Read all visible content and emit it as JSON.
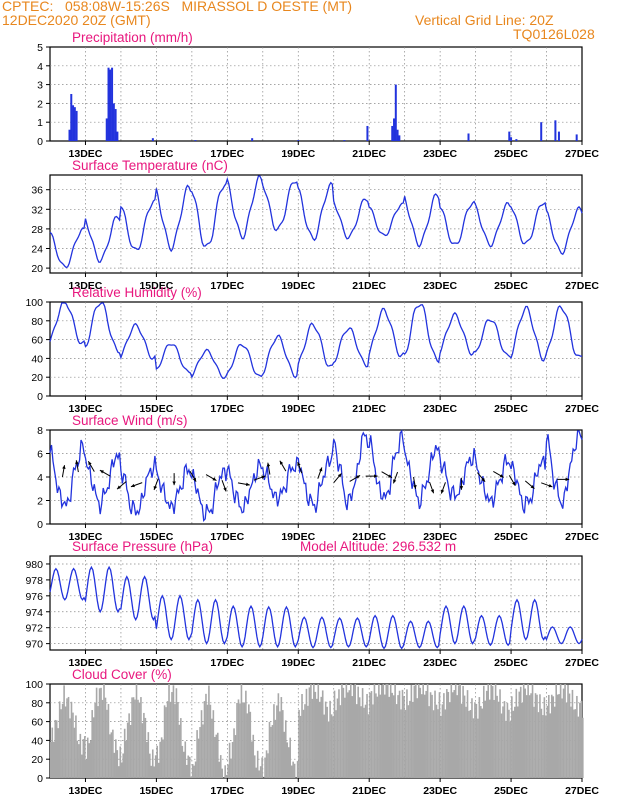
{
  "header": {
    "line1": "CPTEC:   058:08W-15:26S   MIRASSOL D OESTE (MT)",
    "line2": "12DEC2020 20Z (GMT)",
    "grid_note": "Vertical Grid Line: 20Z",
    "model_code": "TQ0126L028"
  },
  "colors": {
    "header": "#e8871e",
    "title": "#e8177e",
    "series": "#2233dd",
    "cloud": "#a8a8a8",
    "grid": "#888888"
  },
  "x_ticks": [
    "13DEC",
    "15DEC",
    "17DEC",
    "19DEC",
    "21DEC",
    "23DEC",
    "25DEC",
    "27DEC"
  ],
  "chart_data": [
    {
      "type": "bar",
      "title": "Precipitation (mm/h)",
      "ylim": [
        0,
        5
      ],
      "yticks": [
        "0",
        "1",
        "2",
        "3",
        "4",
        "5"
      ],
      "time_range_days": [
        0,
        15
      ],
      "points": [
        [
          0.55,
          0.6
        ],
        [
          0.6,
          2.5
        ],
        [
          0.65,
          1.9
        ],
        [
          0.7,
          1.8
        ],
        [
          0.75,
          1.6
        ],
        [
          1.6,
          1.2
        ],
        [
          1.65,
          3.9
        ],
        [
          1.7,
          3.8
        ],
        [
          1.75,
          3.9
        ],
        [
          1.8,
          2.0
        ],
        [
          1.85,
          1.7
        ],
        [
          1.9,
          0.5
        ],
        [
          2.9,
          0.15
        ],
        [
          4.1,
          0.05
        ],
        [
          5.7,
          0.15
        ],
        [
          7.0,
          0.05
        ],
        [
          8.3,
          0.05
        ],
        [
          8.95,
          0.8
        ],
        [
          9.65,
          0.8
        ],
        [
          9.7,
          1.2
        ],
        [
          9.75,
          3.0
        ],
        [
          9.8,
          0.6
        ],
        [
          9.85,
          0.3
        ],
        [
          11.8,
          0.4
        ],
        [
          12.95,
          0.5
        ],
        [
          13.0,
          0.2
        ],
        [
          13.15,
          0.1
        ],
        [
          13.85,
          1.0
        ],
        [
          14.25,
          1.1
        ],
        [
          14.35,
          0.5
        ],
        [
          14.85,
          0.35
        ]
      ]
    },
    {
      "type": "line",
      "title": "Surface Temperature (nC)",
      "ylim": [
        19,
        39
      ],
      "yticks": [
        "20",
        "24",
        "28",
        "32",
        "36"
      ],
      "time_range_days": [
        0,
        15
      ],
      "min_max_by_day": [
        [
          20.2,
          27.8
        ],
        [
          21.6,
          30.5
        ],
        [
          23.5,
          33.6
        ],
        [
          24.2,
          36.4
        ],
        [
          24.1,
          37.2
        ],
        [
          26.5,
          38.3
        ],
        [
          27.8,
          38.0
        ],
        [
          26.0,
          36.8
        ],
        [
          26.3,
          34.2
        ],
        [
          26.6,
          33.0
        ],
        [
          24.9,
          34.9
        ],
        [
          24.6,
          33.4
        ],
        [
          24.8,
          33.0
        ],
        [
          24.9,
          33.5
        ],
        [
          23.2,
          32.0
        ]
      ]
    },
    {
      "type": "line",
      "title": "Relative Humidity (%)",
      "ylim": [
        0,
        100
      ],
      "yticks": [
        "0",
        "20",
        "40",
        "60",
        "80",
        "100"
      ],
      "time_range_days": [
        0,
        15
      ],
      "max_min_by_day": [
        [
          100,
          55
        ],
        [
          100,
          48
        ],
        [
          75,
          40
        ],
        [
          56,
          25
        ],
        [
          48,
          20
        ],
        [
          55,
          20
        ],
        [
          63,
          22
        ],
        [
          76,
          30
        ],
        [
          72,
          33
        ],
        [
          91,
          42
        ],
        [
          99,
          38
        ],
        [
          86,
          45
        ],
        [
          82,
          42
        ],
        [
          93,
          40
        ],
        [
          95,
          40
        ]
      ]
    },
    {
      "type": "line",
      "title": "Surface Wind (m/s)",
      "ylim": [
        0,
        8
      ],
      "yticks": [
        "0",
        "2",
        "4",
        "6",
        "8"
      ],
      "time_range_days": [
        0,
        15
      ],
      "speed_min_max_by_day": [
        [
          1.6,
          6.4
        ],
        [
          1.8,
          5.8
        ],
        [
          1.0,
          4.9
        ],
        [
          1.5,
          4.6
        ],
        [
          0.8,
          4.5
        ],
        [
          1.4,
          4.8
        ],
        [
          2.2,
          5.0
        ],
        [
          1.6,
          5.5
        ],
        [
          1.9,
          7.6
        ],
        [
          2.2,
          7.3
        ],
        [
          2.1,
          6.4
        ],
        [
          2.4,
          5.7
        ],
        [
          2.0,
          5.3
        ],
        [
          1.6,
          5.4
        ],
        [
          1.9,
          7.6
        ]
      ],
      "wind_arrows_deg": [
        10,
        350,
        330,
        300,
        230,
        250,
        200,
        180,
        150,
        120,
        160,
        100,
        70,
        350,
        330,
        340,
        20,
        40,
        60,
        90,
        120,
        200,
        170,
        160,
        200,
        180,
        140,
        120,
        150,
        130,
        110,
        90
      ]
    },
    {
      "type": "line",
      "title": "Surface Pressure (hPa)",
      "annotation": "Model Altitude: 296.532 m",
      "ylim": [
        969.2,
        981
      ],
      "yticks": [
        "970",
        "972",
        "974",
        "976",
        "978",
        "980"
      ],
      "time_range_days": [
        0,
        15
      ],
      "max_min_by_day": [
        [
          979.4,
          975.5
        ],
        [
          979.6,
          974.0
        ],
        [
          978.4,
          973.0
        ],
        [
          976.0,
          970.5
        ],
        [
          975.5,
          970.0
        ],
        [
          974.7,
          969.6
        ],
        [
          974.6,
          969.6
        ],
        [
          973.3,
          969.5
        ],
        [
          973.2,
          969.6
        ],
        [
          973.5,
          969.4
        ],
        [
          972.8,
          969.5
        ],
        [
          974.7,
          970.0
        ],
        [
          973.5,
          969.8
        ],
        [
          975.5,
          970.5
        ],
        [
          972.1,
          970.0
        ]
      ]
    },
    {
      "type": "bar",
      "title": "Cloud Cover (%)",
      "ylim": [
        0,
        100
      ],
      "yticks": [
        "0",
        "20",
        "40",
        "60",
        "80",
        "100"
      ],
      "time_range_days": [
        0,
        15
      ],
      "level_by_day": [
        [
          85,
          35
        ],
        [
          95,
          25
        ],
        [
          90,
          20
        ],
        [
          95,
          15
        ],
        [
          85,
          5
        ],
        [
          90,
          10
        ],
        [
          80,
          10
        ],
        [
          95,
          70
        ],
        [
          98,
          80
        ],
        [
          100,
          85
        ],
        [
          98,
          80
        ],
        [
          98,
          75
        ],
        [
          96,
          70
        ],
        [
          96,
          75
        ],
        [
          95,
          75
        ]
      ]
    }
  ]
}
